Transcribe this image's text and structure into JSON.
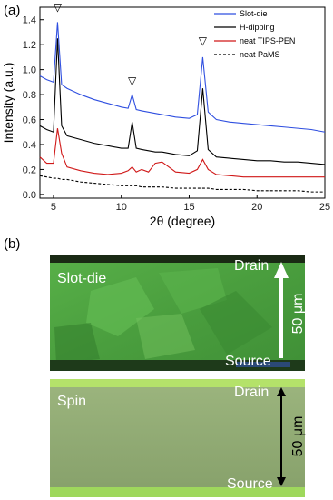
{
  "chart_data": {
    "type": "line",
    "xlabel": "2θ (degree)",
    "ylabel": "Intensity (a.u.)",
    "x": [
      4,
      4.5,
      5,
      5.3,
      5.6,
      6,
      7,
      8,
      9,
      10,
      10.5,
      10.8,
      11.1,
      11.5,
      12,
      12.5,
      13,
      14,
      15,
      15.6,
      16,
      16.4,
      17,
      18,
      19,
      20,
      21,
      22,
      23,
      24,
      25
    ],
    "series": [
      {
        "name": "Slot-die",
        "color": "#2f4fe0",
        "style": "solid",
        "values": [
          0.95,
          0.92,
          0.9,
          1.38,
          0.88,
          0.85,
          0.8,
          0.76,
          0.73,
          0.7,
          0.69,
          0.8,
          0.68,
          0.67,
          0.66,
          0.65,
          0.64,
          0.62,
          0.61,
          0.64,
          1.1,
          0.66,
          0.6,
          0.58,
          0.57,
          0.56,
          0.55,
          0.54,
          0.53,
          0.52,
          0.5
        ]
      },
      {
        "name": "H-dipping",
        "color": "#000000",
        "style": "solid",
        "values": [
          0.55,
          0.52,
          0.5,
          1.25,
          0.55,
          0.47,
          0.44,
          0.41,
          0.39,
          0.37,
          0.37,
          0.58,
          0.37,
          0.36,
          0.35,
          0.34,
          0.34,
          0.32,
          0.31,
          0.35,
          0.85,
          0.36,
          0.3,
          0.29,
          0.28,
          0.27,
          0.27,
          0.26,
          0.26,
          0.25,
          0.24
        ]
      },
      {
        "name": "neat TIPS-PEN",
        "color": "#d01818",
        "style": "solid",
        "values": [
          0.3,
          0.25,
          0.25,
          0.53,
          0.33,
          0.22,
          0.19,
          0.17,
          0.16,
          0.17,
          0.19,
          0.22,
          0.18,
          0.2,
          0.18,
          0.25,
          0.26,
          0.18,
          0.17,
          0.2,
          0.28,
          0.2,
          0.16,
          0.15,
          0.14,
          0.14,
          0.14,
          0.14,
          0.14,
          0.14,
          0.14
        ]
      },
      {
        "name": "neat PaMS",
        "color": "#000000",
        "style": "dashed",
        "values": [
          0.15,
          0.14,
          0.13,
          0.13,
          0.12,
          0.12,
          0.1,
          0.09,
          0.08,
          0.07,
          0.07,
          0.07,
          0.07,
          0.06,
          0.06,
          0.06,
          0.06,
          0.05,
          0.05,
          0.05,
          0.05,
          0.05,
          0.04,
          0.04,
          0.04,
          0.03,
          0.03,
          0.03,
          0.03,
          0.02,
          0.02
        ]
      }
    ],
    "annotations": [
      {
        "text": "▽",
        "x": 5.3,
        "y": 1.47
      },
      {
        "text": "▽",
        "x": 10.8,
        "y": 0.88
      },
      {
        "text": "▽",
        "x": 16.0,
        "y": 1.2
      }
    ],
    "xlim": [
      4,
      25
    ],
    "ylim": [
      -0.03,
      1.5
    ],
    "xticks": [
      5,
      10,
      15,
      20,
      25
    ],
    "yticks": [
      {
        "value": 0,
        "label": "0.0"
      },
      0.2,
      0.4,
      0.6,
      0.8,
      {
        "value": 1,
        "label": "1.0"
      },
      1.2,
      1.4
    ],
    "legend": "top-right"
  },
  "panel_labels": [
    "(a)",
    "(b)"
  ],
  "images": [
    {
      "label": "Slot-die",
      "top": "Drain",
      "bottom": "Source",
      "scale": "50 μm"
    },
    {
      "label": "Spin",
      "top": "Drain",
      "bottom": "Source",
      "scale": "50 μm"
    }
  ]
}
